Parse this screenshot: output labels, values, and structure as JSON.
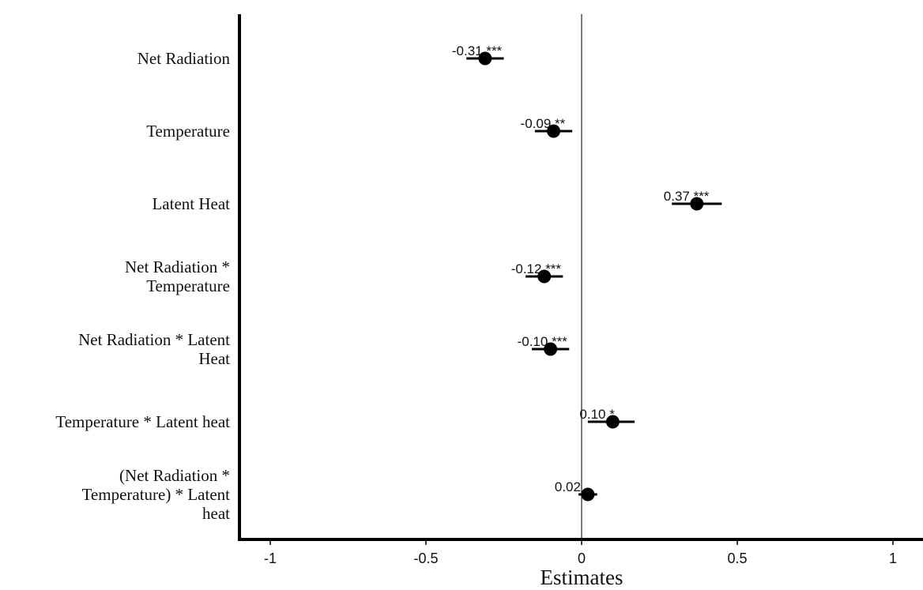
{
  "chart_data": {
    "type": "scatter",
    "subtype": "forest-plot",
    "xlabel": "Estimates",
    "ylabel": "",
    "xlim": [
      -1.1,
      1.1
    ],
    "xticks": [
      -1,
      -0.5,
      0,
      0.5,
      1
    ],
    "xtick_labels": [
      "-1",
      "-0.5",
      "0",
      "0.5",
      "1"
    ],
    "reference_line": 0,
    "grid": false,
    "point_color": "#000000",
    "terms": [
      {
        "label_lines": [
          "Net Radiation"
        ],
        "estimate": -0.31,
        "ci": [
          -0.37,
          -0.25
        ],
        "label": "-0.31 ***"
      },
      {
        "label_lines": [
          "Temperature"
        ],
        "estimate": -0.09,
        "ci": [
          -0.15,
          -0.03
        ],
        "label": "-0.09 **"
      },
      {
        "label_lines": [
          "Latent Heat"
        ],
        "estimate": 0.37,
        "ci": [
          0.29,
          0.45
        ],
        "label": "0.37 ***"
      },
      {
        "label_lines": [
          "Net Radiation *",
          "Temperature"
        ],
        "estimate": -0.12,
        "ci": [
          -0.18,
          -0.06
        ],
        "label": "-0.12 ***"
      },
      {
        "label_lines": [
          "Net Radiation * Latent",
          "Heat"
        ],
        "estimate": -0.1,
        "ci": [
          -0.16,
          -0.04
        ],
        "label": "-0.10 ***"
      },
      {
        "label_lines": [
          "Temperature * Latent heat"
        ],
        "estimate": 0.1,
        "ci": [
          0.02,
          0.17
        ],
        "label": "0.10 *"
      },
      {
        "label_lines": [
          "(Net Radiation *",
          "Temperature) * Latent",
          "heat"
        ],
        "estimate": 0.02,
        "ci": [
          -0.01,
          0.05
        ],
        "label": "0.02"
      }
    ]
  }
}
